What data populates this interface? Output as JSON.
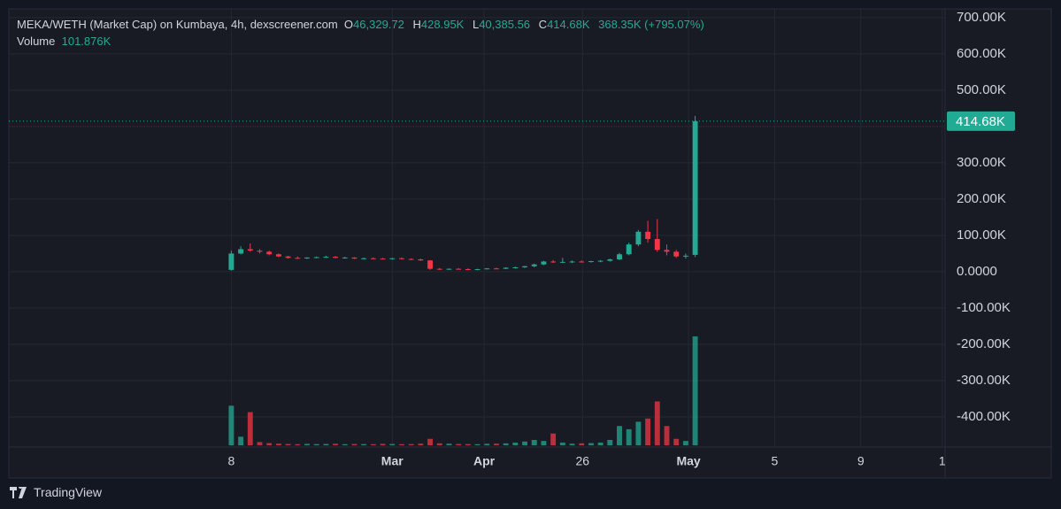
{
  "chart_data": {
    "type": "candlestick",
    "title": "MEKA/WETH (Market Cap) on Kumbaya, 4h, dexscreener.com",
    "legend_labels": {
      "open": "O",
      "high": "H",
      "low": "L",
      "close": "C",
      "volume": "Volume"
    },
    "value_labels": {
      "open": "46,329.72",
      "high": "428.95K",
      "low": "40,385.56",
      "close": "414.68K",
      "change": "368.35K (+795.07%)",
      "volume": "101.876K"
    },
    "up_color": "#22ab94",
    "down_color": "#f23645",
    "grid": true,
    "x": [
      0,
      1,
      2,
      3,
      4,
      5,
      6,
      7,
      8,
      9,
      10,
      11,
      12,
      13,
      14,
      15,
      16,
      17,
      18,
      19,
      20,
      21,
      22,
      23,
      24,
      25,
      26,
      27,
      28,
      29,
      30,
      31,
      32,
      33,
      34,
      35,
      36,
      37,
      38,
      39,
      40,
      41,
      42,
      43,
      44,
      45,
      46,
      47,
      48,
      49
    ],
    "open": [
      5000,
      50000,
      62000,
      58000,
      55000,
      48000,
      42000,
      38000,
      37000,
      39000,
      40000,
      41000,
      38000,
      39000,
      36000,
      37000,
      36000,
      35000,
      37000,
      35000,
      34000,
      31000,
      8000,
      7000,
      8000,
      7000,
      6000,
      7000,
      9000,
      8000,
      11000,
      12000,
      15000,
      20000,
      28000,
      26000,
      27000,
      28000,
      27000,
      29000,
      30000,
      34000,
      48000,
      75000,
      110000,
      90000,
      60000,
      55000,
      42000,
      46329.72
    ],
    "high": [
      58000,
      70000,
      78000,
      62000,
      58000,
      50000,
      44000,
      42000,
      40000,
      42000,
      44000,
      43000,
      41000,
      40000,
      39000,
      39000,
      38000,
      38000,
      39000,
      37000,
      36000,
      32000,
      10000,
      9000,
      10000,
      9000,
      8000,
      10000,
      11000,
      12000,
      14000,
      16000,
      22000,
      30000,
      32000,
      38000,
      31000,
      31000,
      30000,
      32000,
      36000,
      52000,
      80000,
      115000,
      140000,
      145000,
      75000,
      60000,
      50000,
      428950
    ],
    "low": [
      3000,
      48000,
      55000,
      50000,
      45000,
      40000,
      36000,
      35000,
      35000,
      37000,
      38000,
      37000,
      36000,
      35000,
      34000,
      35000,
      34000,
      33000,
      34000,
      32000,
      30000,
      5000,
      5000,
      5000,
      6000,
      4000,
      4000,
      6000,
      7000,
      7000,
      9000,
      10000,
      12000,
      18000,
      24000,
      24000,
      24000,
      25000,
      25000,
      26000,
      28000,
      32000,
      45000,
      70000,
      80000,
      55000,
      45000,
      38000,
      36000,
      40385.56
    ],
    "close": [
      50000,
      62000,
      58000,
      55000,
      48000,
      42000,
      38000,
      37000,
      39000,
      40000,
      41000,
      38000,
      39000,
      36000,
      37000,
      36000,
      35000,
      37000,
      35000,
      34000,
      31000,
      8000,
      7000,
      8000,
      7000,
      6000,
      7000,
      9000,
      8000,
      11000,
      12000,
      15000,
      20000,
      28000,
      26000,
      27000,
      28000,
      27000,
      29000,
      30000,
      34000,
      48000,
      75000,
      110000,
      90000,
      60000,
      55000,
      42000,
      44000,
      414680
    ],
    "volume": [
      37000,
      8000,
      31000,
      3000,
      2000,
      1500,
      1200,
      1000,
      1300,
      1100,
      1200,
      1400,
      1000,
      1200,
      1100,
      1000,
      1300,
      1200,
      1000,
      1100,
      1500,
      6000,
      1800,
      1500,
      1200,
      1100,
      1000,
      1400,
      1500,
      1800,
      2500,
      3500,
      5000,
      4000,
      11000,
      2500,
      1500,
      1800,
      2000,
      2500,
      5000,
      18000,
      15000,
      22000,
      25000,
      41000,
      18000,
      6000,
      4000,
      101876
    ],
    "last_price": {
      "value": 414680,
      "label": "414.68K"
    },
    "xlim": [
      -23.5,
      75.4
    ],
    "xticks": [
      {
        "value": 0,
        "label": "8"
      },
      {
        "value": 17,
        "label": "Mar"
      },
      {
        "value": 26.7,
        "label": "Apr"
      },
      {
        "value": 37.1,
        "label": "26"
      },
      {
        "value": 48.3,
        "label": "May"
      },
      {
        "value": 57.4,
        "label": "5"
      },
      {
        "value": 66.5,
        "label": "9"
      },
      {
        "value": 75.1,
        "label": "1"
      }
    ],
    "ylim": [
      -483000,
      724000
    ],
    "yticks": [
      {
        "value": 700000,
        "label": "700.00K"
      },
      {
        "value": 600000,
        "label": "600.00K"
      },
      {
        "value": 500000,
        "label": "500.00K"
      },
      {
        "value": 400000,
        "label": "400.00K"
      },
      {
        "value": 300000,
        "label": "300.00K"
      },
      {
        "value": 200000,
        "label": "200.00K"
      },
      {
        "value": 100000,
        "label": "100.00K"
      },
      {
        "value": 0,
        "label": "0.0000"
      },
      {
        "value": -100000,
        "label": "-100.00K"
      },
      {
        "value": -200000,
        "label": "-200.00K"
      },
      {
        "value": -300000,
        "label": "-300.00K"
      },
      {
        "value": -400000,
        "label": "-400.00K"
      }
    ],
    "attribution": "TradingView"
  }
}
